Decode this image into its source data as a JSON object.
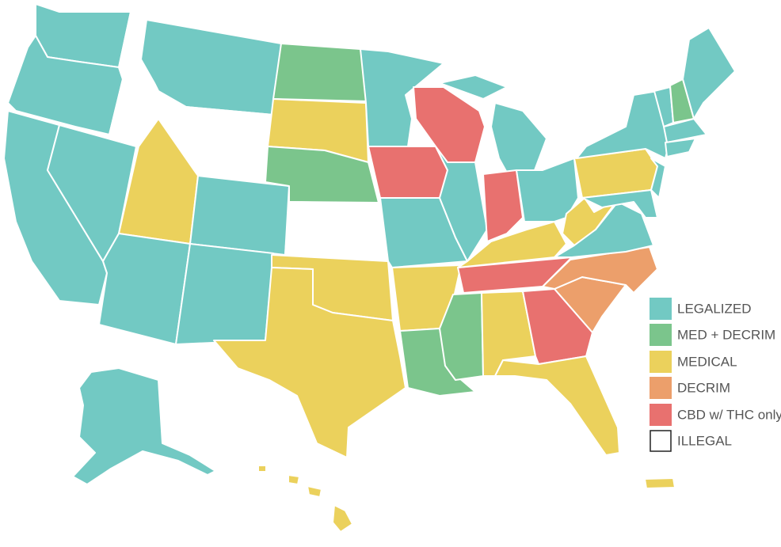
{
  "legend": {
    "items": [
      {
        "label": "LEGALIZED",
        "color": "#72c9c3"
      },
      {
        "label": "MED + DECRIM",
        "color": "#7bc58c"
      },
      {
        "label": "MEDICAL",
        "color": "#ebd15c"
      },
      {
        "label": "DECRIM",
        "color": "#ec9f6b"
      },
      {
        "label": "CBD w/ THC only",
        "color": "#e8716f"
      },
      {
        "label": "ILLEGAL",
        "color": "#ffffff"
      }
    ]
  }
}
